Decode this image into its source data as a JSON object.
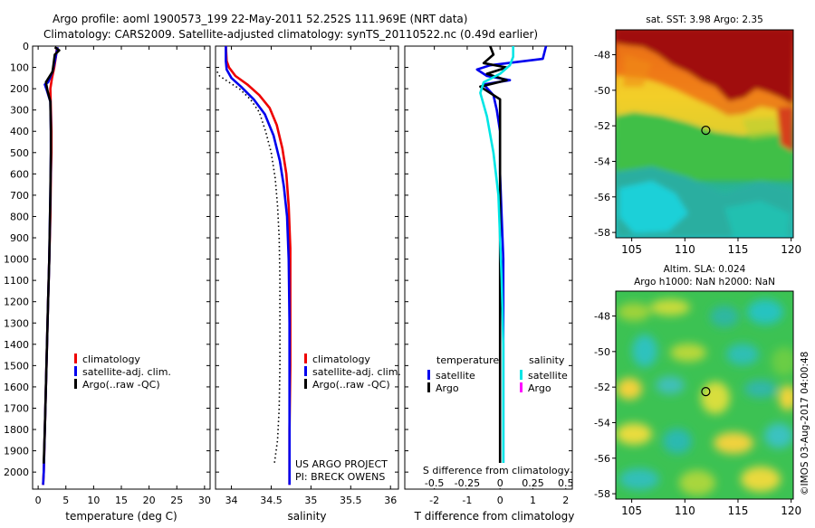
{
  "header": {
    "title_line1": "Argo profile: aoml 1900573_199 22-May-2011 52.252S 111.969E (NRT data)",
    "title_line2": "Climatology: CARS2009. Satellite-adjusted climatology: synTS_20110522.nc (0.49d earlier)"
  },
  "colors": {
    "climatology": "#ee0000",
    "satellite": "#0000ee",
    "argo": "#000000",
    "sat_salinity": "#00e5e5",
    "argo_salinity": "#ff00ff"
  },
  "chart_data": [
    {
      "type": "line",
      "id": "temperature",
      "xlabel": "temperature (deg C)",
      "ylabel": "",
      "xlim": [
        -1,
        31
      ],
      "ylim": [
        2080,
        0
      ],
      "xticks": [
        0,
        5,
        10,
        15,
        20,
        25,
        30
      ],
      "yticks": [
        0,
        100,
        200,
        300,
        400,
        500,
        600,
        700,
        800,
        900,
        1000,
        1100,
        1200,
        1300,
        1400,
        1500,
        1600,
        1700,
        1800,
        1900,
        2000
      ],
      "legend": [
        "climatology",
        "satellite-adj. clim.",
        "Argo(..raw -QC)"
      ],
      "series": [
        {
          "name": "climatology",
          "color": "#ee0000",
          "points": [
            [
              3.4,
              5
            ],
            [
              3.2,
              50
            ],
            [
              2.9,
              100
            ],
            [
              2.5,
              150
            ],
            [
              2.2,
              200
            ],
            [
              2.3,
              300
            ],
            [
              2.4,
              400
            ],
            [
              2.4,
              500
            ],
            [
              2.3,
              600
            ],
            [
              2.2,
              800
            ],
            [
              2.0,
              1000
            ],
            [
              1.8,
              1200
            ],
            [
              1.6,
              1400
            ],
            [
              1.4,
              1600
            ],
            [
              1.2,
              1800
            ],
            [
              1.0,
              2000
            ],
            [
              0.9,
              2060
            ]
          ]
        },
        {
          "name": "satellite-adj. clim.",
          "color": "#0000ee",
          "points": [
            [
              3.5,
              5
            ],
            [
              3.1,
              60
            ],
            [
              2.6,
              120
            ],
            [
              1.8,
              170
            ],
            [
              1.2,
              180
            ],
            [
              1.6,
              210
            ],
            [
              2.2,
              260
            ],
            [
              2.3,
              400
            ],
            [
              2.3,
              500
            ],
            [
              2.2,
              700
            ],
            [
              2.0,
              1000
            ],
            [
              1.8,
              1200
            ],
            [
              1.6,
              1400
            ],
            [
              1.4,
              1600
            ],
            [
              1.2,
              1800
            ],
            [
              1.0,
              2000
            ],
            [
              0.9,
              2060
            ]
          ]
        },
        {
          "name": "Argo(..raw -QC)",
          "color": "#000000",
          "points": [
            [
              3.0,
              5
            ],
            [
              3.8,
              20
            ],
            [
              3.0,
              40
            ],
            [
              2.8,
              80
            ],
            [
              2.6,
              120
            ],
            [
              1.4,
              170
            ],
            [
              1.7,
              210
            ],
            [
              2.2,
              260
            ],
            [
              2.3,
              400
            ],
            [
              2.3,
              500
            ],
            [
              2.2,
              700
            ],
            [
              2.0,
              1000
            ],
            [
              1.8,
              1200
            ],
            [
              1.6,
              1400
            ],
            [
              1.4,
              1600
            ],
            [
              1.2,
              1800
            ],
            [
              1.0,
              1960
            ]
          ]
        }
      ]
    },
    {
      "type": "line",
      "id": "salinity",
      "xlabel": "salinity",
      "xlim": [
        33.8,
        36.1
      ],
      "ylim": [
        2080,
        0
      ],
      "xticks": [
        34,
        34.5,
        35,
        35.5,
        36
      ],
      "legend": [
        "climatology",
        "satellite-adj. clim.",
        "Argo(..raw -QC)"
      ],
      "annotation": [
        "US ARGO PROJECT",
        "PI: BRECK OWENS"
      ],
      "series": [
        {
          "name": "climatology",
          "color": "#ee0000",
          "points": [
            [
              33.93,
              0
            ],
            [
              33.94,
              70
            ],
            [
              33.97,
              100
            ],
            [
              34.05,
              140
            ],
            [
              34.2,
              180
            ],
            [
              34.35,
              230
            ],
            [
              34.48,
              290
            ],
            [
              34.57,
              370
            ],
            [
              34.64,
              480
            ],
            [
              34.69,
              600
            ],
            [
              34.72,
              750
            ],
            [
              34.74,
              950
            ],
            [
              34.74,
              1200
            ],
            [
              34.74,
              1500
            ],
            [
              34.73,
              1800
            ],
            [
              34.73,
              2060
            ]
          ]
        },
        {
          "name": "satellite-adj. clim.",
          "color": "#0000ee",
          "points": [
            [
              33.93,
              0
            ],
            [
              33.93,
              70
            ],
            [
              33.94,
              110
            ],
            [
              34.0,
              150
            ],
            [
              34.12,
              190
            ],
            [
              34.28,
              250
            ],
            [
              34.42,
              320
            ],
            [
              34.53,
              420
            ],
            [
              34.61,
              540
            ],
            [
              34.66,
              660
            ],
            [
              34.7,
              800
            ],
            [
              34.72,
              1000
            ],
            [
              34.73,
              1300
            ],
            [
              34.73,
              1600
            ],
            [
              34.73,
              1900
            ],
            [
              34.73,
              2060
            ]
          ]
        },
        {
          "name": "Argo(..raw -QC)",
          "color": "#000000",
          "dash": true,
          "points": [
            [
              33.82,
              120
            ],
            [
              33.85,
              140
            ],
            [
              33.97,
              170
            ],
            [
              34.1,
              200
            ],
            [
              34.24,
              250
            ],
            [
              34.35,
              310
            ],
            [
              34.43,
              400
            ],
            [
              34.5,
              500
            ],
            [
              34.55,
              620
            ],
            [
              34.58,
              750
            ],
            [
              34.6,
              900
            ],
            [
              34.61,
              1100
            ],
            [
              34.61,
              1300
            ],
            [
              34.61,
              1500
            ],
            [
              34.6,
              1700
            ],
            [
              34.58,
              1850
            ],
            [
              34.54,
              1960
            ]
          ]
        }
      ]
    },
    {
      "type": "line",
      "id": "difference",
      "xlabel": "T difference from climatology",
      "toplabel": "S difference from climatology",
      "xlim": [
        -2.9,
        2.2
      ],
      "ylim": [
        2080,
        0
      ],
      "xticks": [
        -2,
        -1,
        0,
        1,
        2
      ],
      "sticks": [
        {
          "label": "-0.5",
          "pos": -2
        },
        {
          "label": "-0.25",
          "pos": -1
        },
        {
          "label": "0",
          "pos": 0
        },
        {
          "label": "0.25",
          "pos": 1
        },
        {
          "label": "0.5",
          "pos": 2
        }
      ],
      "legend_groups": [
        {
          "title": "temperature",
          "items": [
            {
              "label": "satellite",
              "color": "#0000ee"
            },
            {
              "label": "Argo",
              "color": "#000000"
            }
          ]
        },
        {
          "title": "salinity",
          "items": [
            {
              "label": "satellite",
              "color": "#00e5e5"
            },
            {
              "label": "Argo",
              "color": "#ff00ff"
            }
          ]
        }
      ],
      "series": [
        {
          "name": "temperature satellite",
          "color": "#0000ee",
          "points": [
            [
              1.4,
              0
            ],
            [
              1.3,
              60
            ],
            [
              -0.3,
              90
            ],
            [
              -0.7,
              110
            ],
            [
              -0.4,
              140
            ],
            [
              0.3,
              160
            ],
            [
              -0.5,
              180
            ],
            [
              -0.2,
              230
            ],
            [
              -0.1,
              300
            ],
            [
              0.0,
              400
            ],
            [
              0.0,
              600
            ],
            [
              0.05,
              800
            ],
            [
              0.1,
              1000
            ],
            [
              0.1,
              1400
            ],
            [
              0.1,
              1800
            ],
            [
              0.1,
              2060
            ]
          ]
        },
        {
          "name": "temperature Argo",
          "color": "#000000",
          "points": [
            [
              -0.3,
              0
            ],
            [
              -0.2,
              40
            ],
            [
              -0.5,
              80
            ],
            [
              0.2,
              100
            ],
            [
              -0.4,
              130
            ],
            [
              0.2,
              160
            ],
            [
              -0.6,
              190
            ],
            [
              0.0,
              250
            ],
            [
              0.0,
              400
            ],
            [
              0.0,
              800
            ],
            [
              0.0,
              1200
            ],
            [
              0.0,
              1600
            ],
            [
              0.0,
              1960
            ]
          ]
        },
        {
          "name": "salinity satellite",
          "color": "#00e5e5",
          "points": [
            [
              0.4,
              0
            ],
            [
              0.4,
              50
            ],
            [
              0.3,
              90
            ],
            [
              0.0,
              130
            ],
            [
              -0.5,
              170
            ],
            [
              -0.6,
              220
            ],
            [
              -0.4,
              330
            ],
            [
              -0.2,
              500
            ],
            [
              -0.05,
              700
            ],
            [
              0.0,
              900
            ],
            [
              0.05,
              1100
            ],
            [
              0.1,
              1400
            ],
            [
              0.1,
              1700
            ],
            [
              0.1,
              2060
            ]
          ]
        }
      ]
    }
  ],
  "maps": [
    {
      "id": "sst",
      "title": "sat. SST: 3.98 Argo: 2.35",
      "xticks": [
        "105",
        "110",
        "115",
        "120"
      ],
      "yticks": [
        "-48",
        "-50",
        "-52",
        "-54",
        "-56",
        "-58"
      ],
      "lon": [
        103.5,
        120.2
      ],
      "lat": [
        -46.6,
        -58.3
      ],
      "marker": [
        111.97,
        -52.25
      ]
    },
    {
      "id": "sla",
      "title1": "Altim. SLA: 0.024",
      "title2": "Argo h1000: NaN h2000: NaN",
      "xticks": [
        "105",
        "110",
        "115",
        "120"
      ],
      "yticks": [
        "-48",
        "-50",
        "-52",
        "-54",
        "-56",
        "-58"
      ],
      "lon": [
        103.5,
        120.2
      ],
      "lat": [
        -46.6,
        -58.3
      ],
      "marker": [
        111.97,
        -52.25
      ]
    }
  ],
  "watermark": "©IMOS 03-Aug-2017 04:00:48"
}
